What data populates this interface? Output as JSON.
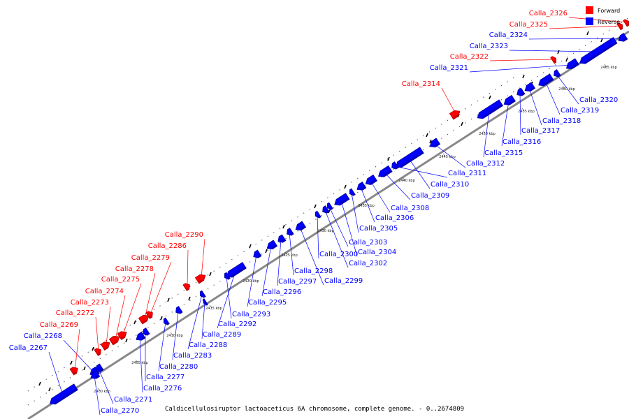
{
  "caption": "Caldicellulosiruptor lactoaceticus 6A chromosome, complete genome. - 0..2674809",
  "legend": [
    {
      "label": "Forward",
      "color": "#ff0000"
    },
    {
      "label": "Reverse",
      "color": "#0000ff"
    }
  ],
  "colors": {
    "forward": "#ff0000",
    "reverse": "#0000ff",
    "axis": "#888888",
    "tick": "#000000"
  },
  "kbp_marks": [
    "2400 kbp",
    "2405 kbp",
    "2410 kbp",
    "2415 kbp",
    "2420 kbp",
    "2425 kbp",
    "2430 kbp",
    "2435 kbp",
    "2440 kbp",
    "2445 kbp",
    "2450 kbp",
    "2455 kbp",
    "2460 kbp",
    "2465 kbp"
  ],
  "genes": [
    {
      "name": "Calla_2267",
      "strand": "reverse"
    },
    {
      "name": "Calla_2268",
      "strand": "reverse"
    },
    {
      "name": "Calla_2269",
      "strand": "forward"
    },
    {
      "name": "Calla_2270",
      "strand": "reverse"
    },
    {
      "name": "Calla_2271",
      "strand": "reverse"
    },
    {
      "name": "Calla_2272",
      "strand": "forward"
    },
    {
      "name": "Calla_2273",
      "strand": "forward"
    },
    {
      "name": "Calla_2274",
      "strand": "forward"
    },
    {
      "name": "Calla_2275",
      "strand": "forward"
    },
    {
      "name": "Calla_2276",
      "strand": "reverse"
    },
    {
      "name": "Calla_2277",
      "strand": "reverse"
    },
    {
      "name": "Calla_2278",
      "strand": "forward"
    },
    {
      "name": "Calla_2279",
      "strand": "forward"
    },
    {
      "name": "Calla_2280",
      "strand": "reverse"
    },
    {
      "name": "Calla_2283",
      "strand": "reverse"
    },
    {
      "name": "Calla_2286",
      "strand": "forward"
    },
    {
      "name": "Calla_2288",
      "strand": "reverse"
    },
    {
      "name": "Calla_2289",
      "strand": "reverse"
    },
    {
      "name": "Calla_2290",
      "strand": "forward"
    },
    {
      "name": "Calla_2292",
      "strand": "reverse"
    },
    {
      "name": "Calla_2293",
      "strand": "reverse"
    },
    {
      "name": "Calla_2295",
      "strand": "reverse"
    },
    {
      "name": "Calla_2296",
      "strand": "reverse"
    },
    {
      "name": "Calla_2297",
      "strand": "reverse"
    },
    {
      "name": "Calla_2298",
      "strand": "reverse"
    },
    {
      "name": "Calla_2299",
      "strand": "reverse"
    },
    {
      "name": "Calla_2300",
      "strand": "reverse"
    },
    {
      "name": "Calla_2302",
      "strand": "reverse"
    },
    {
      "name": "Calla_2303",
      "strand": "reverse"
    },
    {
      "name": "Calla_2304",
      "strand": "reverse"
    },
    {
      "name": "Calla_2305",
      "strand": "reverse"
    },
    {
      "name": "Calla_2306",
      "strand": "reverse"
    },
    {
      "name": "Calla_2308",
      "strand": "reverse"
    },
    {
      "name": "Calla_2309",
      "strand": "reverse"
    },
    {
      "name": "Calla_2310",
      "strand": "reverse"
    },
    {
      "name": "Calla_2311",
      "strand": "reverse"
    },
    {
      "name": "Calla_2312",
      "strand": "reverse"
    },
    {
      "name": "Calla_2314",
      "strand": "forward"
    },
    {
      "name": "Calla_2315",
      "strand": "reverse"
    },
    {
      "name": "Calla_2316",
      "strand": "reverse"
    },
    {
      "name": "Calla_2317",
      "strand": "reverse"
    },
    {
      "name": "Calla_2318",
      "strand": "reverse"
    },
    {
      "name": "Calla_2319",
      "strand": "reverse"
    },
    {
      "name": "Calla_2320",
      "strand": "reverse"
    },
    {
      "name": "Calla_2321",
      "strand": "reverse"
    },
    {
      "name": "Calla_2322",
      "strand": "forward"
    },
    {
      "name": "Calla_2323",
      "strand": "reverse"
    },
    {
      "name": "Calla_2324",
      "strand": "reverse"
    },
    {
      "name": "Calla_2325",
      "strand": "forward"
    },
    {
      "name": "Calla_2326",
      "strand": "forward"
    }
  ]
}
